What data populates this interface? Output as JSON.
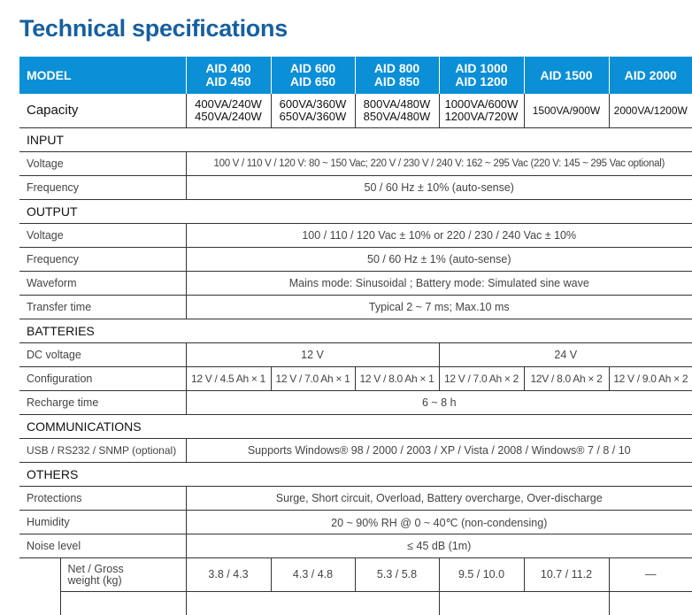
{
  "title": "Technical specifications",
  "header": {
    "model": "MODEL",
    "models": [
      [
        "AID 400",
        "AID 450"
      ],
      [
        "AID 600",
        "AID 650"
      ],
      [
        "AID 800",
        "AID 850"
      ],
      [
        "AID 1000",
        "AID 1200"
      ],
      [
        "AID 1500"
      ],
      [
        "AID 2000"
      ]
    ]
  },
  "capacity": {
    "label": "Capacity",
    "values": [
      [
        "400VA/240W",
        "450VA/240W"
      ],
      [
        "600VA/360W",
        "650VA/360W"
      ],
      [
        "800VA/480W",
        "850VA/480W"
      ],
      [
        "1000VA/600W",
        "1200VA/720W"
      ],
      [
        "1500VA/900W"
      ],
      [
        "2000VA/1200W"
      ]
    ]
  },
  "input": {
    "heading": "INPUT",
    "voltage_label": "Voltage",
    "voltage": "100 V / 110 V / 120 V: 80 ~ 150 Vac; 220 V / 230 V / 240 V: 162 ~ 295 Vac (220 V: 145 ~ 295 Vac optional)",
    "frequency_label": "Frequency",
    "frequency": "50 / 60 Hz ± 10% (auto-sense)"
  },
  "output": {
    "heading": "OUTPUT",
    "voltage_label": "Voltage",
    "voltage": "100 / 110 / 120 Vac ± 10% or 220 / 230 / 240 Vac ± 10%",
    "frequency_label": "Frequency",
    "frequency": "50 / 60 Hz ± 1% (auto-sense)",
    "waveform_label": "Waveform",
    "waveform": "Mains mode: Sinusoidal ; Battery mode: Simulated sine wave",
    "transfer_label": "Transfer time",
    "transfer": "Typical 2 ~ 7 ms; Max.10 ms"
  },
  "batteries": {
    "heading": "BATTERIES",
    "dc_label": "DC voltage",
    "dc": [
      "12 V",
      "24 V"
    ],
    "config_label": "Configuration",
    "config": [
      "12 V / 4.5 Ah × 1",
      "12 V / 7.0 Ah × 1",
      "12 V / 8.0 Ah × 1",
      "12 V / 7.0 Ah × 2",
      "12V / 8.0 Ah × 2",
      "12 V / 9.0 Ah × 2"
    ],
    "recharge_label": "Recharge time",
    "recharge": "6 ~ 8 h"
  },
  "communications": {
    "heading": "COMMUNICATIONS",
    "label": "USB / RS232 / SNMP (optional)",
    "value": "Supports Windows® 98 / 2000 / 2003 / XP / Vista / 2008 / Windows® 7 / 8 / 10"
  },
  "others": {
    "heading": "OTHERS",
    "protections_label": "Protections",
    "protections": "Surge, Short circuit, Overload, Battery overcharge, Over-discharge",
    "humidity_label": "Humidity",
    "humidity": "20 ~ 90% RH @ 0 ~ 40℃ (non-condensing)",
    "noise_label": "Noise level",
    "noise": "≤ 45 dB (1m)",
    "weight_label": [
      "Net / Gross",
      "weight (kg)"
    ],
    "weight": [
      "3.8 / 4.3",
      "4.3 / 4.8",
      "5.3 / 5.8",
      "9.5 / 10.0",
      "10.7 / 11.2",
      "—"
    ]
  }
}
